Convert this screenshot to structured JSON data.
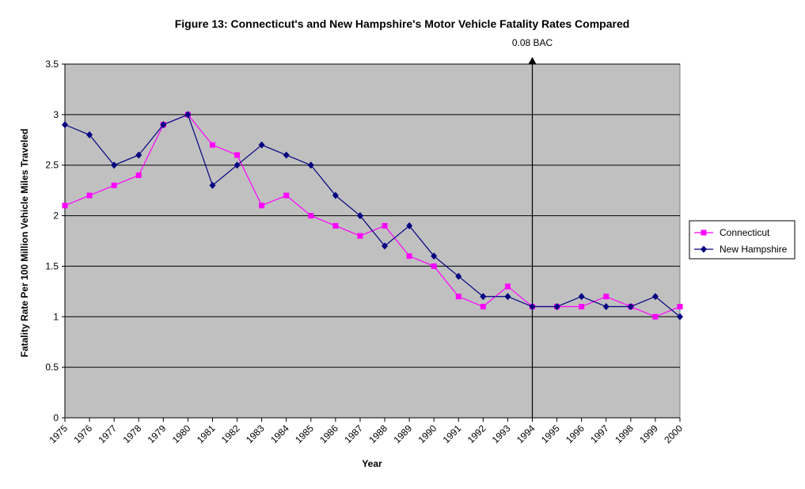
{
  "chart_data": {
    "type": "line",
    "title": "Figure 13: Connecticut's and New Hampshire's Motor Vehicle Fatality Rates Compared",
    "xlabel": "Year",
    "ylabel": "Fatality Rate Per 100 Million Vehicle Miles Traveled",
    "categories": [
      "1975",
      "1976",
      "1977",
      "1978",
      "1979",
      "1980",
      "1981",
      "1982",
      "1983",
      "1984",
      "1985",
      "1986",
      "1987",
      "1988",
      "1989",
      "1990",
      "1991",
      "1992",
      "1993",
      "1994",
      "1995",
      "1996",
      "1997",
      "1998",
      "1999",
      "2000"
    ],
    "ylim": [
      0,
      3.5
    ],
    "yticks": [
      "0",
      "0.5",
      "1",
      "1.5",
      "2",
      "2.5",
      "3",
      "3.5"
    ],
    "grid": true,
    "legend_position": "right",
    "plot_background": "#c0c0c0",
    "series": [
      {
        "name": "Connecticut",
        "color": "#ff00ff",
        "marker": "square",
        "values": [
          2.1,
          2.2,
          2.3,
          2.4,
          2.9,
          3.0,
          2.7,
          2.6,
          2.1,
          2.2,
          2.0,
          1.9,
          1.8,
          1.9,
          1.6,
          1.5,
          1.2,
          1.1,
          1.3,
          1.1,
          1.1,
          1.1,
          1.2,
          1.1,
          1.0,
          1.1
        ]
      },
      {
        "name": "New Hampshire",
        "color": "#000080",
        "marker": "diamond",
        "values": [
          2.9,
          2.8,
          2.5,
          2.6,
          2.9,
          3.0,
          2.3,
          2.5,
          2.7,
          2.6,
          2.5,
          2.2,
          2.0,
          1.7,
          1.9,
          1.6,
          1.4,
          1.2,
          1.2,
          1.1,
          1.1,
          1.2,
          1.1,
          1.1,
          1.2,
          1.0
        ]
      }
    ],
    "annotation": {
      "text": "0.08 BAC",
      "x": "1994"
    }
  }
}
